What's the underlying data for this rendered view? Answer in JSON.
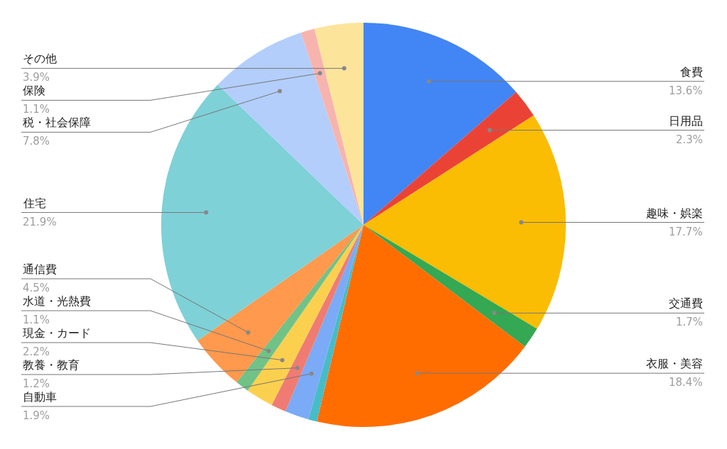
{
  "chart_data": {
    "type": "pie",
    "legend": false,
    "categories": [
      "食費",
      "日用品",
      "趣味・娯楽",
      "交通費",
      "衣服・美容",
      null,
      "自動車",
      "教養・教育",
      "現金・カード",
      "水道・光熱費",
      "通信費",
      "住宅",
      "税・社会保障",
      "保険",
      "その他"
    ],
    "values": [
      13.6,
      2.3,
      17.7,
      1.7,
      18.4,
      0.7,
      1.9,
      1.2,
      2.2,
      1.1,
      4.5,
      21.9,
      7.8,
      1.1,
      3.9
    ],
    "value_labels": [
      "13.6%",
      "2.3%",
      "17.7%",
      "1.7%",
      "18.4%",
      null,
      "1.9%",
      "1.2%",
      "2.2%",
      "1.1%",
      "4.5%",
      "21.9%",
      "7.8%",
      "1.1%",
      "3.9%"
    ],
    "colors": [
      "#4285f4",
      "#ea4335",
      "#fbbc04",
      "#34a853",
      "#ff6d01",
      "#46bdc6",
      "#7baaf7",
      "#f07b72",
      "#fcd04f",
      "#71c287",
      "#ff994d",
      "#7ed1d7",
      "#b3cefb",
      "#f7b4ae",
      "#fde49b"
    ]
  }
}
